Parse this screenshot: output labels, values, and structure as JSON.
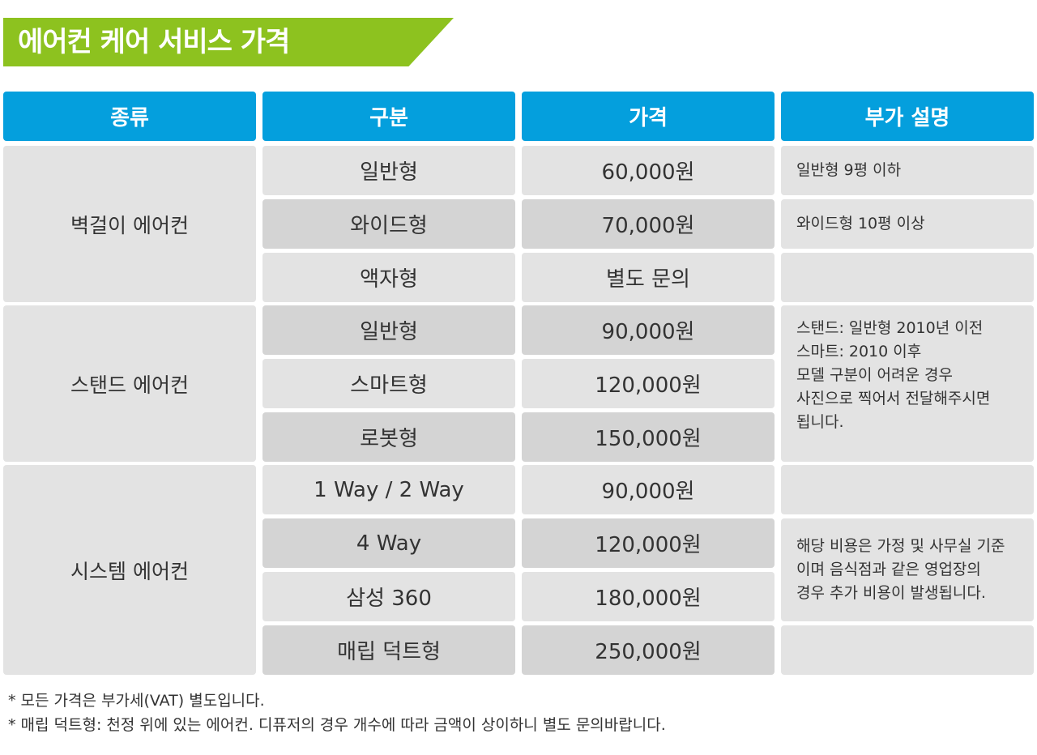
{
  "title": "에어컨 케어 서비스 가격",
  "headers": [
    "종류",
    "구분",
    "가격",
    "부가 설명"
  ],
  "types": [
    "벽걸이 에어컨",
    "스탠드 에어컨",
    "시스템 에어컨"
  ],
  "rows": [
    {
      "category": "일반형",
      "price": "60,000원"
    },
    {
      "category": "와이드형",
      "price": "70,000원"
    },
    {
      "category": "액자형",
      "price": "별도 문의"
    },
    {
      "category": "일반형",
      "price": "90,000원"
    },
    {
      "category": "스마트형",
      "price": "120,000원"
    },
    {
      "category": "로봇형",
      "price": "150,000원"
    },
    {
      "category": "1 Way / 2 Way",
      "price": "90,000원"
    },
    {
      "category": "4 Way",
      "price": "120,000원"
    },
    {
      "category": "삼성 360",
      "price": "180,000원"
    },
    {
      "category": "매립 덕트형",
      "price": "250,000원"
    }
  ],
  "notes": {
    "wall_normal": "일반형 9평 이하",
    "wall_wide": "와이드형 10평 이상",
    "stand": "스탠드: 일반형 2010년 이전\n스마트: 2010 이후\n모델 구분이 어려운 경우\n사진으로 찍어서 전달해주시면\n됩니다.",
    "system": "해당 비용은 가정 및 사무실 기준\n이며 음식점과 같은 영업장의\n경우 추가 비용이 발생됩니다."
  },
  "footnotes": [
    "* 모든 가격은 부가세(VAT) 별도입니다.",
    "* 매립 덕트형: 천정 위에 있는 에어컨. 디퓨저의 경우 개수에 따라 금액이 상이하니 별도 문의바랍니다."
  ]
}
